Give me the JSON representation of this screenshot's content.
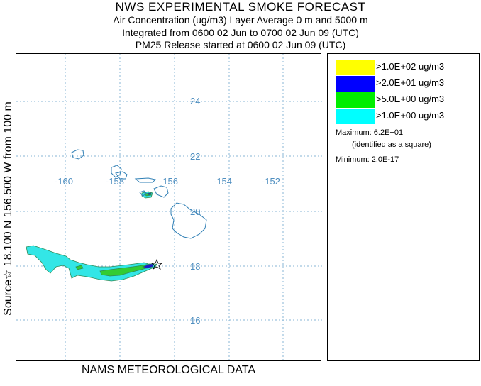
{
  "header": {
    "title": "NWS EXPERIMENTAL SMOKE FORECAST",
    "line1": "Air Concentration (ug/m3) Layer Average    0 m and  5000 m",
    "line2": "Integrated from 0600 02 Jun to 0700 02 Jun 09 (UTC)",
    "line3": "PM25 Release started at 0600 02 Jun 09 (UTC)"
  },
  "side_label": "Source☆ 18.100  N 156.500  W      from   100 m",
  "bottom_label": "NAMS METEOROLOGICAL DATA",
  "map": {
    "lon_labels": [
      "-160",
      "-158",
      "-156",
      "-154",
      "-152"
    ],
    "lat_labels": [
      "24",
      "22",
      "20",
      "18",
      "16"
    ],
    "grid_color": "#87b6d6",
    "label_color": "#4f8fc0",
    "coast_color": "#2f7fb5"
  },
  "legend": {
    "items": [
      {
        "label": ">1.0E+02 ug/m3",
        "color": "#ffff00"
      },
      {
        "label": ">2.0E+01 ug/m3",
        "color": "#0000ff"
      },
      {
        "label": ">5.0E+00 ug/m3",
        "color": "#00ee00"
      },
      {
        "label": ">1.0E+00 ug/m3",
        "color": "#00ffff"
      }
    ],
    "maximum": "Maximum: 6.2E+01",
    "maximum_note": "(identified as a square)",
    "minimum": "Minimum: 2.0E-17"
  },
  "colors": {
    "plume_low": "#33e6e6",
    "plume_mid": "#33cc33",
    "plume_high": "#1a1acc"
  }
}
